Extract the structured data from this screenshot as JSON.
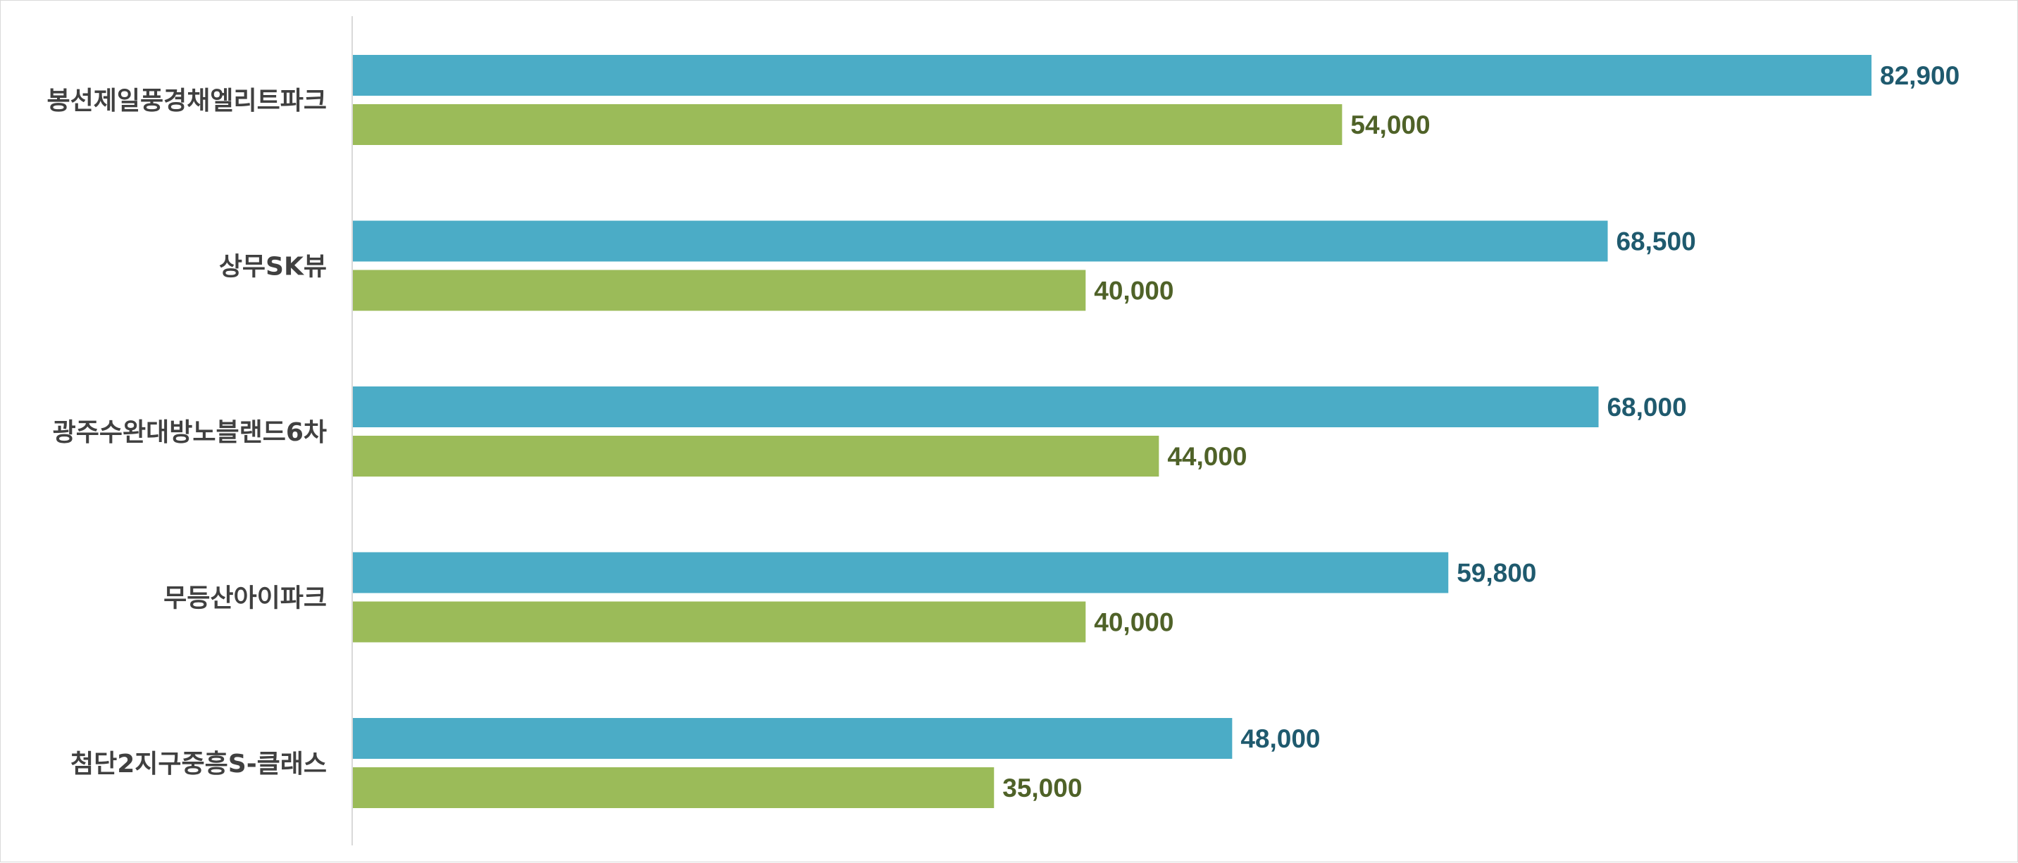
{
  "chart_data": {
    "type": "bar",
    "orientation": "horizontal",
    "categories": [
      "봉선제일풍경채엘리트파크",
      "상무SK뷰",
      "광주수완대방노블랜드6차",
      "무등산아이파크",
      "첨단2지구중흥S-클래스"
    ],
    "series": [
      {
        "values": [
          82900,
          68500,
          68000,
          59800,
          48000
        ],
        "color": "#4bacc6",
        "label_color": "#1f5a6e"
      },
      {
        "values": [
          54000,
          40000,
          44000,
          40000,
          35000
        ],
        "color": "#9bbb59",
        "label_color": "#4f6228"
      }
    ],
    "value_labels": [
      [
        "82,900",
        "68,500",
        "68,000",
        "59,800",
        "48,000"
      ],
      [
        "54,000",
        "40,000",
        "44,000",
        "40,000",
        "35,000"
      ]
    ],
    "xlim": [
      0,
      90000
    ],
    "grid": false,
    "legend": "none",
    "title": "",
    "xlabel": "",
    "ylabel": ""
  }
}
